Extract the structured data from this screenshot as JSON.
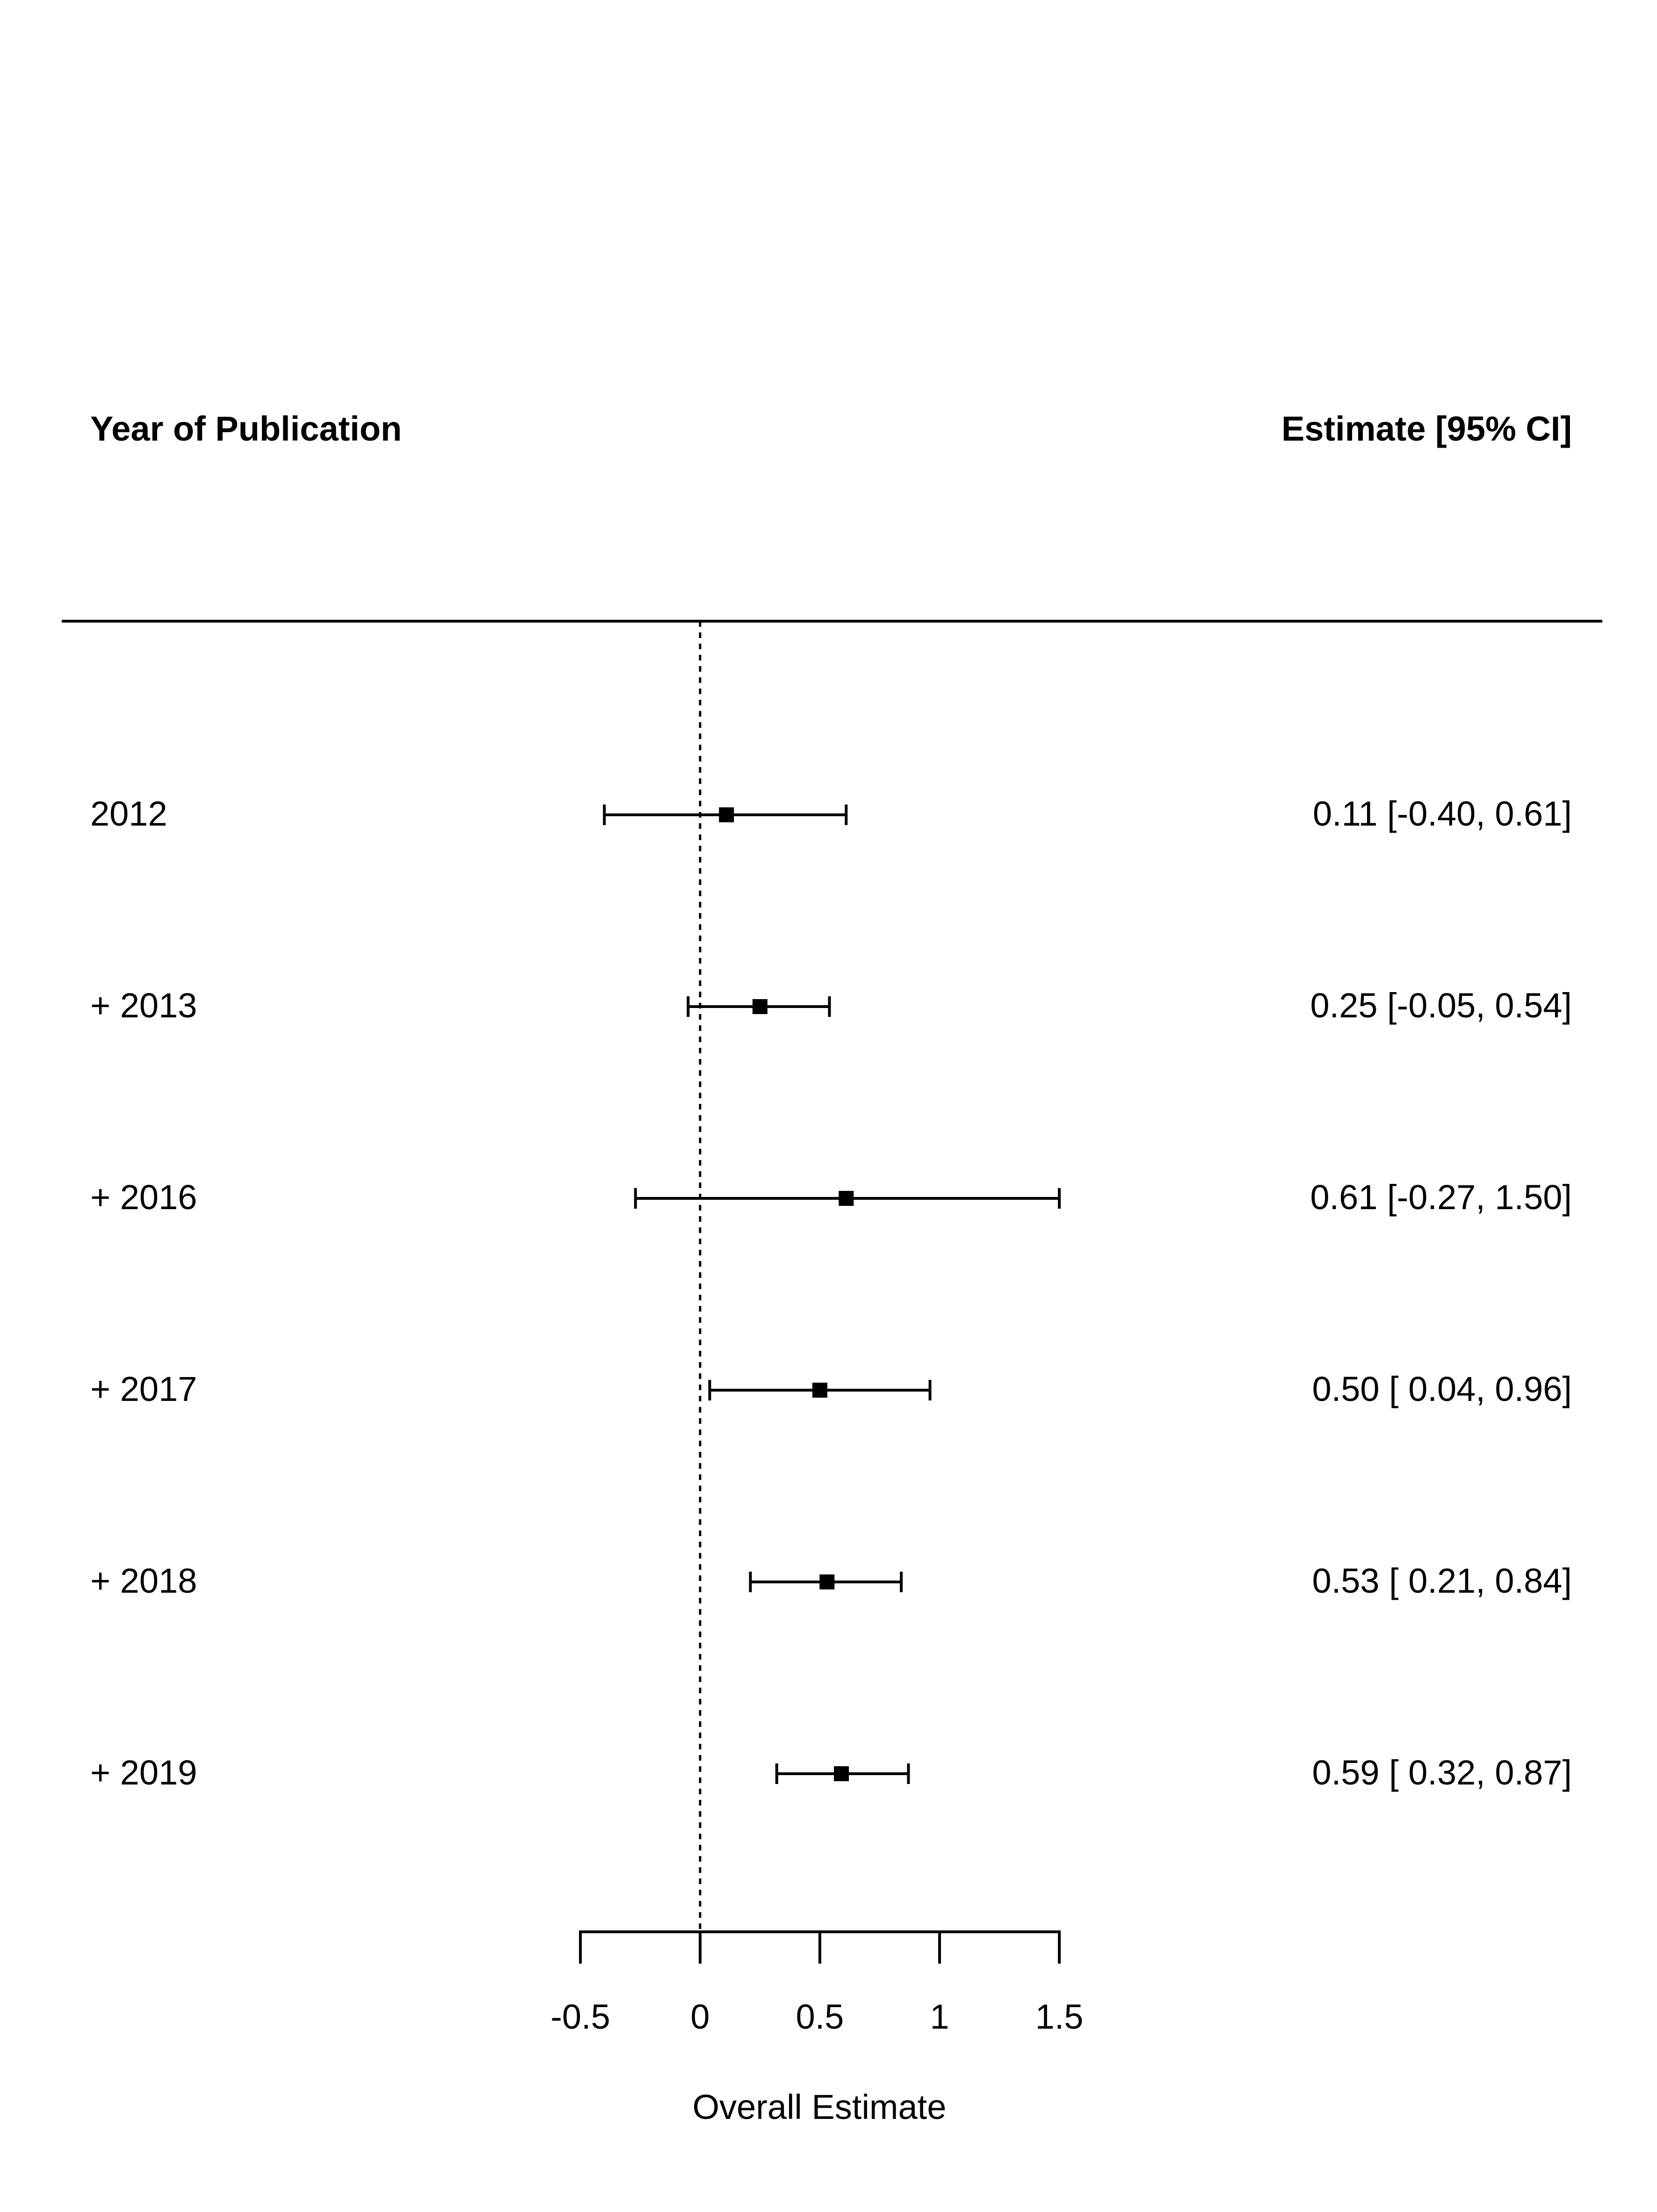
{
  "chart_data": {
    "type": "forest",
    "column_headers": {
      "left": "Year of Publication",
      "right": "Estimate [95% CI]"
    },
    "studies": [
      {
        "label": "2012",
        "estimate": 0.11,
        "ci_low": -0.4,
        "ci_high": 0.61,
        "estimate_text": "0.11 [-0.40, 0.61]"
      },
      {
        "label": "+ 2013",
        "estimate": 0.25,
        "ci_low": -0.05,
        "ci_high": 0.54,
        "estimate_text": "0.25 [-0.05, 0.54]"
      },
      {
        "label": "+ 2016",
        "estimate": 0.61,
        "ci_low": -0.27,
        "ci_high": 1.5,
        "estimate_text": "0.61 [-0.27, 1.50]"
      },
      {
        "label": "+ 2017",
        "estimate": 0.5,
        "ci_low": 0.04,
        "ci_high": 0.96,
        "estimate_text": "0.50 [ 0.04, 0.96]"
      },
      {
        "label": "+ 2018",
        "estimate": 0.53,
        "ci_low": 0.21,
        "ci_high": 0.84,
        "estimate_text": "0.53 [ 0.21, 0.84]"
      },
      {
        "label": "+ 2019",
        "estimate": 0.59,
        "ci_low": 0.32,
        "ci_high": 0.87,
        "estimate_text": "0.59 [ 0.32, 0.87]"
      }
    ],
    "x_axis": {
      "label": "Overall Estimate",
      "ticks": [
        -0.5,
        0,
        0.5,
        1,
        1.5
      ],
      "tick_labels": [
        "-0.5",
        "0",
        "0.5",
        "1",
        "1.5"
      ],
      "range": [
        -0.5,
        1.5
      ]
    },
    "reference_line": 0,
    "colors": {
      "ink": "#000000",
      "background": "#ffffff"
    }
  }
}
